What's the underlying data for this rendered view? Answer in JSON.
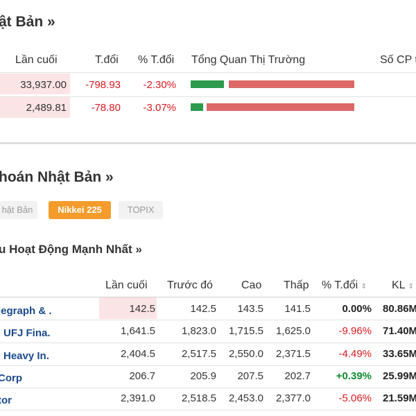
{
  "market_overview": {
    "title": "ật Bản",
    "title_arrow": "»",
    "headers": {
      "last": "Lần cuối",
      "change": "T.đổi",
      "pct": "% T.đổi",
      "overview": "Tổng Quan Thị Trường",
      "count": "Số CP t"
    },
    "rows": [
      {
        "last": "33,937.00",
        "change": "-798.93",
        "pct": "-2.30%",
        "up_ratio": 0.2
      },
      {
        "last": "2,489.81",
        "change": "-78.80",
        "pct": "-3.07%",
        "up_ratio": 0.09
      }
    ]
  },
  "stocks_section": {
    "title": "hoán Nhật Bản",
    "title_arrow": "»",
    "tabs": [
      {
        "label": "hật Bản",
        "active": false
      },
      {
        "label": "Nikkei 225",
        "active": true
      },
      {
        "label": "TOPIX",
        "active": false
      }
    ],
    "subtitle": "u Hoạt Động Mạnh Nhất",
    "subtitle_arrow": "»",
    "headers": {
      "last": "Lần cuối",
      "prev": "Trước đó",
      "high": "Cao",
      "low": "Thấp",
      "pct": "% T.đổi",
      "volume": "KL",
      "sort_icon": "⇕"
    },
    "rows": [
      {
        "name": "legraph & .",
        "last": "142.5",
        "prev": "142.5",
        "high": "143.5",
        "low": "141.5",
        "pct": "0.00%",
        "volume": "80.86M"
      },
      {
        "name": "UFJ Fina.",
        "last": "1,641.5",
        "prev": "1,823.0",
        "high": "1,715.5",
        "low": "1,625.0",
        "pct": "-9.96%",
        "volume": "71.40M"
      },
      {
        "name": "Heavy In.",
        "last": "2,404.5",
        "prev": "2,517.5",
        "high": "2,550.0",
        "low": "2,371.5",
        "pct": "-4.49%",
        "volume": "33.65M"
      },
      {
        "name": "Corp",
        "last": "206.7",
        "prev": "205.9",
        "high": "207.5",
        "low": "202.7",
        "pct": "+0.39%",
        "volume": "25.99M"
      },
      {
        "name": "tor",
        "last": "2,391.0",
        "prev": "2,518.5",
        "high": "2,453.0",
        "low": "2,377.0",
        "pct": "-5.06%",
        "volume": "21.59M"
      }
    ]
  },
  "colors": {
    "accent": "#f39c2b",
    "negative": "#d71920",
    "positive": "#0e8c2e",
    "bar_up": "#2e9a4e",
    "bar_down": "#dd6868",
    "row_highlight": "#fbe4e5",
    "link": "#1a4a8c"
  }
}
